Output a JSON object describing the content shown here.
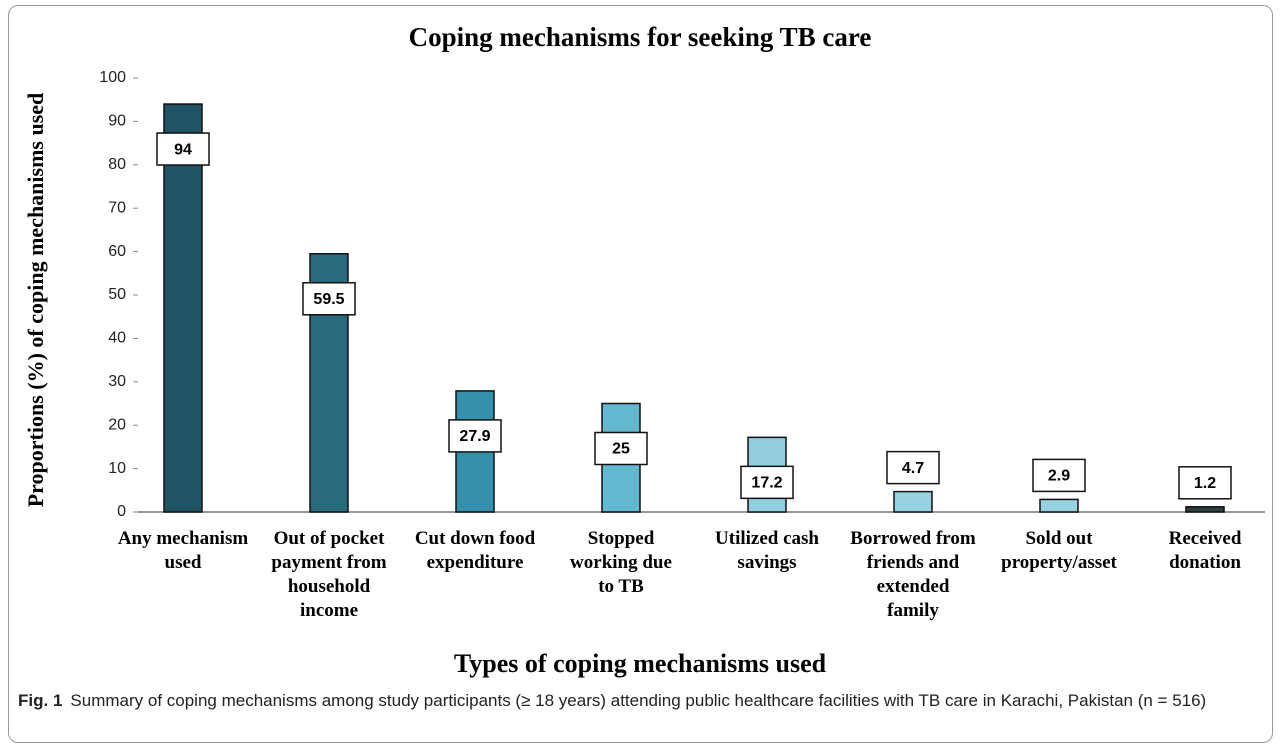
{
  "chart_data": {
    "type": "bar",
    "title": "Coping mechanisms for seeking TB care",
    "categories": [
      "Any mechanism used",
      "Out of pocket payment from household income",
      "Cut down food expenditure",
      "Stopped working due to TB",
      "Utilized cash savings",
      "Borrowed from friends and extended family",
      "Sold out property/asset",
      "Received donation"
    ],
    "values": [
      94,
      59.5,
      27.9,
      25,
      17.2,
      4.7,
      2.9,
      1.2
    ],
    "colors": [
      "#1f5464",
      "#2a6a7e",
      "#3490ab",
      "#63b8d0",
      "#91cfe0",
      "#98d2e2",
      "#98d2e2",
      "#2d3f3f"
    ],
    "ylim": [
      0,
      100
    ],
    "yticks": [
      0,
      10,
      20,
      30,
      40,
      50,
      60,
      70,
      80,
      90,
      100
    ],
    "ylabel": "Proportions (%) of coping mechanisms used",
    "xlabel": "Types of coping mechanisms used",
    "grid": false
  },
  "caption": {
    "label": "Fig. 1",
    "text": "Summary of coping mechanisms among study participants (≥ 18 years) attending public healthcare facilities with TB care in Karachi, Pakistan (n = 516)"
  }
}
